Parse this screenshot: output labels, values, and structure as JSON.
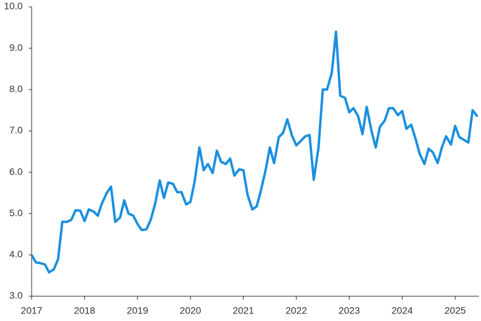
{
  "chart_data": {
    "type": "line",
    "x": [
      2017,
      2017.08,
      2017.17,
      2017.25,
      2017.33,
      2017.42,
      2017.5,
      2017.58,
      2017.67,
      2017.75,
      2017.83,
      2017.92,
      2018,
      2018.08,
      2018.17,
      2018.25,
      2018.33,
      2018.42,
      2018.5,
      2018.58,
      2018.67,
      2018.75,
      2018.83,
      2018.92,
      2019,
      2019.08,
      2019.17,
      2019.25,
      2019.33,
      2019.42,
      2019.5,
      2019.58,
      2019.67,
      2019.75,
      2019.83,
      2019.92,
      2020,
      2020.08,
      2020.17,
      2020.25,
      2020.33,
      2020.42,
      2020.5,
      2020.58,
      2020.67,
      2020.75,
      2020.83,
      2020.92,
      2021,
      2021.08,
      2021.17,
      2021.25,
      2021.33,
      2021.42,
      2021.5,
      2021.58,
      2021.67,
      2021.75,
      2021.83,
      2021.92,
      2022,
      2022.08,
      2022.17,
      2022.25,
      2022.33,
      2022.42,
      2022.5,
      2022.58,
      2022.67,
      2022.75,
      2022.83,
      2022.92,
      2023,
      2023.08,
      2023.17,
      2023.25,
      2023.33,
      2023.42,
      2023.5,
      2023.58,
      2023.67,
      2023.75,
      2023.83,
      2023.92,
      2024,
      2024.08,
      2024.17,
      2024.25,
      2024.33,
      2024.42,
      2024.5,
      2024.58,
      2024.67,
      2024.75,
      2024.83,
      2024.92,
      2025,
      2025.08,
      2025.17,
      2025.25,
      2025.33,
      2025.42
    ],
    "series": [
      {
        "color": "#1a8fdf",
        "values": [
          4.0,
          3.82,
          3.8,
          3.77,
          3.58,
          3.65,
          3.9,
          4.8,
          4.8,
          4.85,
          5.08,
          5.07,
          4.82,
          5.1,
          5.05,
          4.95,
          5.25,
          5.5,
          5.65,
          4.8,
          4.9,
          5.32,
          5.0,
          4.95,
          4.75,
          4.6,
          4.62,
          4.85,
          5.22,
          5.8,
          5.38,
          5.75,
          5.72,
          5.52,
          5.52,
          5.22,
          5.28,
          5.78,
          6.6,
          6.05,
          6.2,
          5.98,
          6.52,
          6.25,
          6.2,
          6.33,
          5.92,
          6.07,
          6.05,
          5.45,
          5.1,
          5.17,
          5.55,
          6.05,
          6.6,
          6.22,
          6.85,
          6.95,
          7.28,
          6.88,
          6.65,
          6.75,
          6.87,
          6.9,
          5.82,
          6.6,
          8.0,
          8.0,
          8.4,
          9.4,
          7.85,
          7.8,
          7.45,
          7.55,
          7.35,
          6.92,
          7.58,
          7.0,
          6.6,
          7.1,
          7.25,
          7.55,
          7.55,
          7.38,
          7.48,
          7.05,
          7.15,
          6.82,
          6.45,
          6.2,
          6.57,
          6.48,
          6.22,
          6.6,
          6.87,
          6.67,
          7.12,
          6.85,
          6.78,
          6.72,
          7.5,
          7.35
        ]
      }
    ],
    "xlim": [
      2017,
      2025.45
    ],
    "xticks": [
      2017,
      2018,
      2019,
      2020,
      2021,
      2022,
      2023,
      2024,
      2025
    ],
    "ylim": [
      3,
      10
    ],
    "yticks": [
      {
        "value": 3,
        "label": "3.0"
      },
      {
        "value": 4,
        "label": "4.0"
      },
      {
        "value": 5,
        "label": "5.0"
      },
      {
        "value": 6,
        "label": "6.0"
      },
      {
        "value": 7,
        "label": "7.0"
      },
      {
        "value": 8,
        "label": "8.0"
      },
      {
        "value": 9,
        "label": "9.0"
      },
      {
        "value": 10,
        "label": "10.0"
      }
    ],
    "grid": false
  }
}
